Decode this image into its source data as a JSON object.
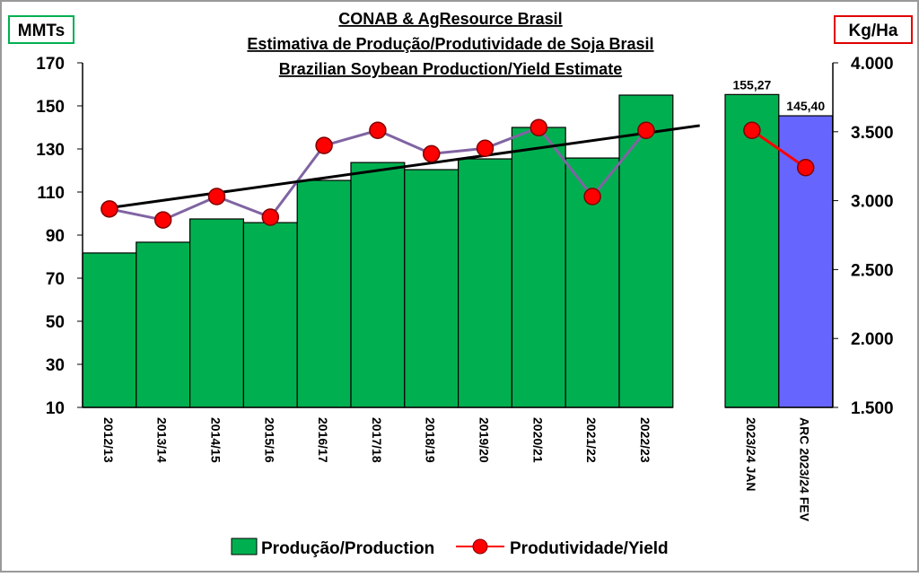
{
  "chart_data": {
    "type": "bar-line",
    "title": [
      "CONAB & AgResource Brasil",
      "Estimativa de Produção/Produtividade de Soja Brasil",
      "Brazilian Soybean Production/Yield Estimate"
    ],
    "y_label": "MMTs",
    "y2_label": "Kg/Ha",
    "categories": [
      "2012/13",
      "2013/14",
      "2014/15",
      "2015/16",
      "2016/17",
      "2017/18",
      "2018/19",
      "2019/20",
      "2020/21",
      "2021/22",
      "2022/23",
      "2023/24 JAN",
      "ARC 2023/24 FEV"
    ],
    "groups": [
      11,
      2
    ],
    "series": [
      {
        "name": "Produção/Production",
        "type": "bar",
        "colors": [
          "#00b050",
          "#00b050",
          "#00b050",
          "#00b050",
          "#00b050",
          "#00b050",
          "#00b050",
          "#00b050",
          "#00b050",
          "#00b050",
          "#00b050",
          "#00b050",
          "#6666ff"
        ],
        "values": [
          81.7,
          86.7,
          97.5,
          95.8,
          115.4,
          123.7,
          120.4,
          125.4,
          140,
          125.8,
          155,
          155.27,
          145.4
        ],
        "value_labels": [
          null,
          null,
          null,
          null,
          null,
          null,
          null,
          null,
          null,
          null,
          null,
          "155,27",
          "145,40"
        ]
      },
      {
        "name": "Produtividade/Yield",
        "type": "line",
        "axis": "y2",
        "color": "#ff0000",
        "segment_colors": [
          "#8064a2",
          "#ff0000"
        ],
        "values": [
          2940,
          2860,
          3030,
          2880,
          3400,
          3510,
          3340,
          3380,
          3530,
          3030,
          3510,
          3510,
          3240
        ]
      }
    ],
    "trendline": true,
    "ylim": [
      10,
      170
    ],
    "yticks": [
      10,
      30,
      50,
      70,
      90,
      110,
      130,
      150,
      170
    ],
    "y2lim": [
      1500,
      4000
    ],
    "y2ticks": [
      {
        "value": 1500,
        "label": "1.500"
      },
      {
        "value": 2000,
        "label": "2.000"
      },
      {
        "value": 2500,
        "label": "2.500"
      },
      {
        "value": 3000,
        "label": "3.000"
      },
      {
        "value": 3500,
        "label": "3.500"
      },
      {
        "value": 4000,
        "label": "4.000"
      }
    ]
  }
}
